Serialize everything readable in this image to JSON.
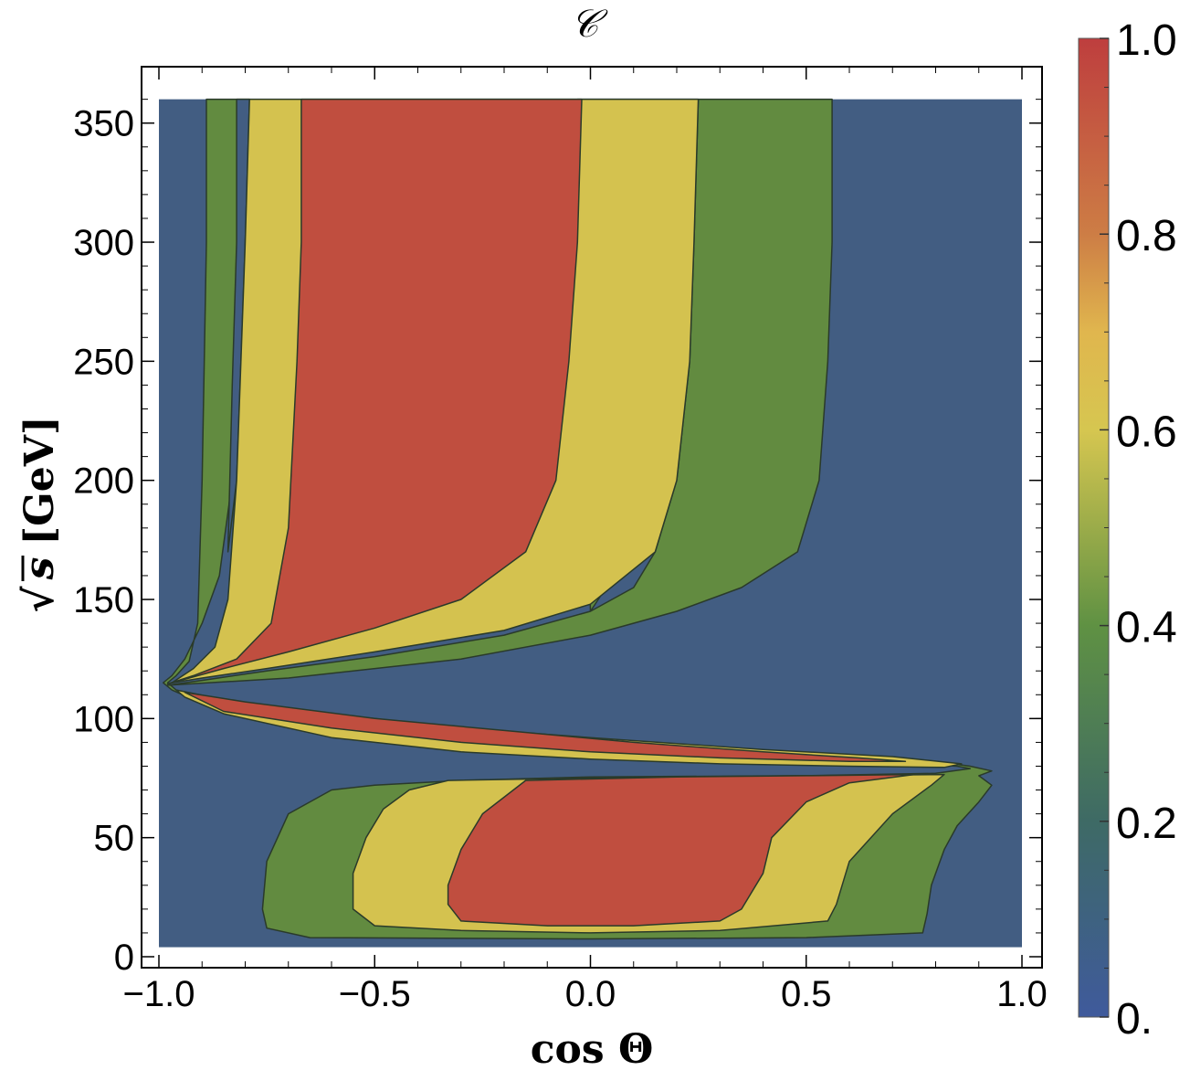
{
  "chart_data": {
    "type": "contour",
    "title": "𝒞",
    "xlabel": "cos Θ",
    "ylabel_radical": "√",
    "ylabel_var": "s",
    "ylabel_unit": "[GeV]",
    "xlim": [
      -1.0,
      1.0
    ],
    "ylim": [
      0,
      366
    ],
    "x_ticks": [
      -1.0,
      -0.5,
      0.0,
      0.5,
      1.0
    ],
    "x_tick_labels": [
      "−1.0",
      "−0.5",
      "0.0",
      "0.5",
      "1.0"
    ],
    "y_ticks": [
      0,
      50,
      100,
      150,
      200,
      250,
      300,
      350
    ],
    "y_tick_labels": [
      "0",
      "50",
      "100",
      "150",
      "200",
      "250",
      "300",
      "350"
    ],
    "colorbar": {
      "range": [
        0,
        1
      ],
      "ticks": [
        0,
        0.2,
        0.4,
        0.6,
        0.8,
        1.0
      ],
      "tick_labels": [
        "0.",
        "0.2",
        "0.4",
        "0.6",
        "0.8",
        "1.0"
      ]
    },
    "levels": [
      {
        "range": [
          0.0,
          0.25
        ],
        "color": "#425d82"
      },
      {
        "range": [
          0.25,
          0.5
        ],
        "color": "#628b40"
      },
      {
        "range": [
          0.5,
          0.75
        ],
        "color": "#d4c24f"
      },
      {
        "range": [
          0.75,
          1.0
        ],
        "color": "#c04e3f"
      }
    ],
    "regions": [
      {
        "level": 1,
        "points": [
          [
            -0.89,
            360
          ],
          [
            -0.79,
            360
          ],
          [
            -0.8,
            300
          ],
          [
            -0.81,
            250
          ],
          [
            -0.83,
            200
          ],
          [
            -0.86,
            160
          ],
          [
            -0.9,
            140
          ],
          [
            -0.94,
            125
          ],
          [
            -0.97,
            118
          ],
          [
            -0.99,
            115
          ],
          [
            -0.97,
            112
          ],
          [
            -0.92,
            108
          ],
          [
            -0.85,
            103
          ],
          [
            -0.7,
            98
          ],
          [
            -0.5,
            94
          ],
          [
            -0.3,
            90
          ],
          [
            0.0,
            86.5
          ],
          [
            0.3,
            84
          ],
          [
            0.5,
            82.5
          ],
          [
            0.7,
            81.5
          ],
          [
            0.85,
            80
          ],
          [
            0.88,
            79
          ],
          [
            0.8,
            77
          ],
          [
            0.5,
            76
          ],
          [
            0.0,
            75.5
          ],
          [
            -0.3,
            74
          ],
          [
            -0.5,
            72
          ],
          [
            -0.6,
            70
          ],
          [
            -0.7,
            60
          ],
          [
            -0.75,
            40
          ],
          [
            -0.76,
            20
          ],
          [
            -0.75,
            12
          ],
          [
            -0.65,
            8
          ],
          [
            0.0,
            7.5
          ],
          [
            0.5,
            8
          ],
          [
            0.77,
            10
          ],
          [
            0.78,
            18
          ],
          [
            0.79,
            30
          ],
          [
            0.82,
            45
          ],
          [
            0.85,
            55
          ],
          [
            0.9,
            65
          ],
          [
            0.93,
            72
          ],
          [
            0.9,
            76
          ],
          [
            0.93,
            78
          ],
          [
            0.88,
            80
          ],
          [
            0.8,
            82
          ],
          [
            0.5,
            85
          ],
          [
            0.0,
            89
          ],
          [
            -0.4,
            94
          ],
          [
            -0.6,
            98
          ],
          [
            -0.8,
            104
          ],
          [
            -0.9,
            109
          ],
          [
            -0.96,
            112
          ],
          [
            -0.98,
            115
          ],
          [
            -0.96,
            118
          ],
          [
            -0.93,
            124
          ],
          [
            -0.91,
            140
          ],
          [
            -0.9,
            200
          ],
          [
            -0.89,
            300
          ]
        ]
      },
      {
        "level": 0,
        "points": [
          [
            -0.82,
            360
          ],
          [
            -0.79,
            360
          ],
          [
            -0.8,
            300
          ],
          [
            -0.81,
            250
          ],
          [
            -0.82,
            200
          ],
          [
            -0.84,
            170
          ],
          [
            -0.83,
            240
          ],
          [
            -0.82,
            300
          ]
        ]
      },
      {
        "level": 1,
        "points": [
          [
            -0.03,
            360
          ],
          [
            0.25,
            360
          ],
          [
            0.24,
            300
          ],
          [
            0.23,
            250
          ],
          [
            0.2,
            200
          ],
          [
            0.15,
            170
          ],
          [
            0.1,
            155
          ],
          [
            0.0,
            145
          ],
          [
            -0.2,
            135
          ],
          [
            -0.5,
            126
          ],
          [
            -0.75,
            120
          ],
          [
            -0.9,
            116
          ],
          [
            -0.98,
            114
          ],
          [
            -0.7,
            117
          ],
          [
            -0.3,
            125
          ],
          [
            0.0,
            135
          ],
          [
            0.2,
            145
          ],
          [
            0.35,
            155
          ],
          [
            0.48,
            170
          ],
          [
            0.53,
            200
          ],
          [
            0.55,
            250
          ],
          [
            0.56,
            300
          ],
          [
            0.56,
            360
          ],
          [
            0.25,
            360
          ],
          [
            0.24,
            300
          ],
          [
            0.2,
            200
          ],
          [
            0.0,
            145
          ]
        ]
      },
      {
        "level": 2,
        "points": [
          [
            -0.79,
            360
          ],
          [
            0.25,
            360
          ],
          [
            0.24,
            300
          ],
          [
            0.23,
            250
          ],
          [
            0.2,
            200
          ],
          [
            0.15,
            170
          ],
          [
            0.0,
            148
          ],
          [
            -0.2,
            137
          ],
          [
            -0.5,
            128
          ],
          [
            -0.75,
            121
          ],
          [
            -0.9,
            117
          ],
          [
            -0.97,
            115
          ],
          [
            -0.92,
            121
          ],
          [
            -0.87,
            130
          ],
          [
            -0.84,
            150
          ],
          [
            -0.82,
            200
          ],
          [
            -0.81,
            250
          ],
          [
            -0.8,
            300
          ]
        ]
      },
      {
        "level": 3,
        "points": [
          [
            -0.67,
            360
          ],
          [
            -0.02,
            360
          ],
          [
            -0.03,
            300
          ],
          [
            -0.05,
            250
          ],
          [
            -0.08,
            200
          ],
          [
            -0.15,
            170
          ],
          [
            -0.3,
            150
          ],
          [
            -0.5,
            138
          ],
          [
            -0.7,
            128
          ],
          [
            -0.85,
            121
          ],
          [
            -0.95,
            116
          ],
          [
            -0.98,
            114.5
          ],
          [
            -0.92,
            118
          ],
          [
            -0.82,
            125
          ],
          [
            -0.74,
            140
          ],
          [
            -0.7,
            180
          ],
          [
            -0.68,
            250
          ],
          [
            -0.67,
            300
          ]
        ]
      },
      {
        "level": 2,
        "points": [
          [
            -0.96,
            112
          ],
          [
            -0.85,
            108
          ],
          [
            -0.6,
            102
          ],
          [
            -0.3,
            96
          ],
          [
            0.0,
            92
          ],
          [
            0.4,
            87
          ],
          [
            0.7,
            84
          ],
          [
            0.86,
            81
          ],
          [
            0.82,
            79.5
          ],
          [
            0.6,
            80
          ],
          [
            0.3,
            81
          ],
          [
            0.0,
            83
          ],
          [
            -0.3,
            86
          ],
          [
            -0.6,
            92
          ],
          [
            -0.85,
            102
          ],
          [
            -0.94,
            109
          ]
        ]
      },
      {
        "level": 3,
        "points": [
          [
            -0.94,
            111
          ],
          [
            -0.8,
            107
          ],
          [
            -0.5,
            100
          ],
          [
            -0.2,
            95
          ],
          [
            0.1,
            90
          ],
          [
            0.4,
            86
          ],
          [
            0.62,
            83.5
          ],
          [
            0.73,
            82
          ],
          [
            0.6,
            82
          ],
          [
            0.3,
            83.5
          ],
          [
            0.0,
            86
          ],
          [
            -0.3,
            90
          ],
          [
            -0.6,
            96
          ],
          [
            -0.85,
            103
          ]
        ]
      },
      {
        "level": 2,
        "points": [
          [
            -0.33,
            74
          ],
          [
            0.0,
            75
          ],
          [
            0.5,
            76
          ],
          [
            0.82,
            76.5
          ],
          [
            0.79,
            72
          ],
          [
            0.7,
            60
          ],
          [
            0.6,
            40
          ],
          [
            0.57,
            22
          ],
          [
            0.55,
            15
          ],
          [
            0.3,
            11
          ],
          [
            0.0,
            10
          ],
          [
            -0.3,
            11
          ],
          [
            -0.5,
            13
          ],
          [
            -0.55,
            20
          ],
          [
            -0.55,
            35
          ],
          [
            -0.52,
            50
          ],
          [
            -0.48,
            62
          ],
          [
            -0.42,
            70
          ]
        ]
      },
      {
        "level": 3,
        "points": [
          [
            -0.15,
            74
          ],
          [
            0.2,
            75.5
          ],
          [
            0.5,
            76
          ],
          [
            0.75,
            76.5
          ],
          [
            0.6,
            73
          ],
          [
            0.5,
            65
          ],
          [
            0.42,
            50
          ],
          [
            0.4,
            35
          ],
          [
            0.35,
            20
          ],
          [
            0.3,
            15
          ],
          [
            0.1,
            13
          ],
          [
            -0.1,
            13
          ],
          [
            -0.3,
            15
          ],
          [
            -0.33,
            22
          ],
          [
            -0.33,
            30
          ],
          [
            -0.3,
            45
          ],
          [
            -0.25,
            60
          ]
        ]
      }
    ]
  }
}
